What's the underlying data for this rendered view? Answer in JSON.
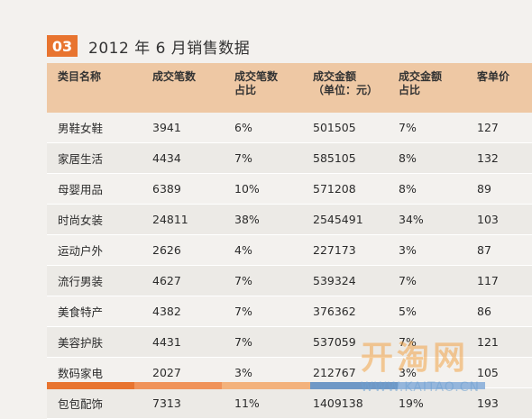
{
  "header": {
    "badge": "03",
    "title": "2012 年 6 月销售数据"
  },
  "table": {
    "columns": [
      {
        "line1": "类目名称",
        "line2": ""
      },
      {
        "line1": "成交笔数",
        "line2": ""
      },
      {
        "line1": "成交笔数",
        "line2": "占比"
      },
      {
        "line1": "成交金额",
        "line2": "（单位：元）"
      },
      {
        "line1": "成交金额",
        "line2": "占比"
      },
      {
        "line1": "客单价",
        "line2": ""
      }
    ],
    "rows": [
      [
        "男鞋女鞋",
        "3941",
        "6%",
        "501505",
        "7%",
        "127"
      ],
      [
        "家居生活",
        "4434",
        "7%",
        "585105",
        "8%",
        "132"
      ],
      [
        "母婴用品",
        "6389",
        "10%",
        "571208",
        "8%",
        "89"
      ],
      [
        "时尚女装",
        "24811",
        "38%",
        "2545491",
        "34%",
        "103"
      ],
      [
        "运动户外",
        "2626",
        "4%",
        "227173",
        "3%",
        "87"
      ],
      [
        "流行男装",
        "4627",
        "7%",
        "539324",
        "7%",
        "117"
      ],
      [
        "美食特产",
        "4382",
        "7%",
        "376362",
        "5%",
        "86"
      ],
      [
        "美容护肤",
        "4431",
        "7%",
        "537059",
        "7%",
        "121"
      ],
      [
        "数码家电",
        "2027",
        "3%",
        "212767",
        "3%",
        "105"
      ],
      [
        "包包配饰",
        "7313",
        "11%",
        "1409138",
        "19%",
        "193"
      ]
    ]
  },
  "stripe_colors": [
    "#e8742f",
    "#f0935a",
    "#f3b27c",
    "#6f98c6",
    "#95b6dc"
  ],
  "watermark": {
    "logo": "开淘网",
    "url": "WWW.KAITAO.CN"
  }
}
